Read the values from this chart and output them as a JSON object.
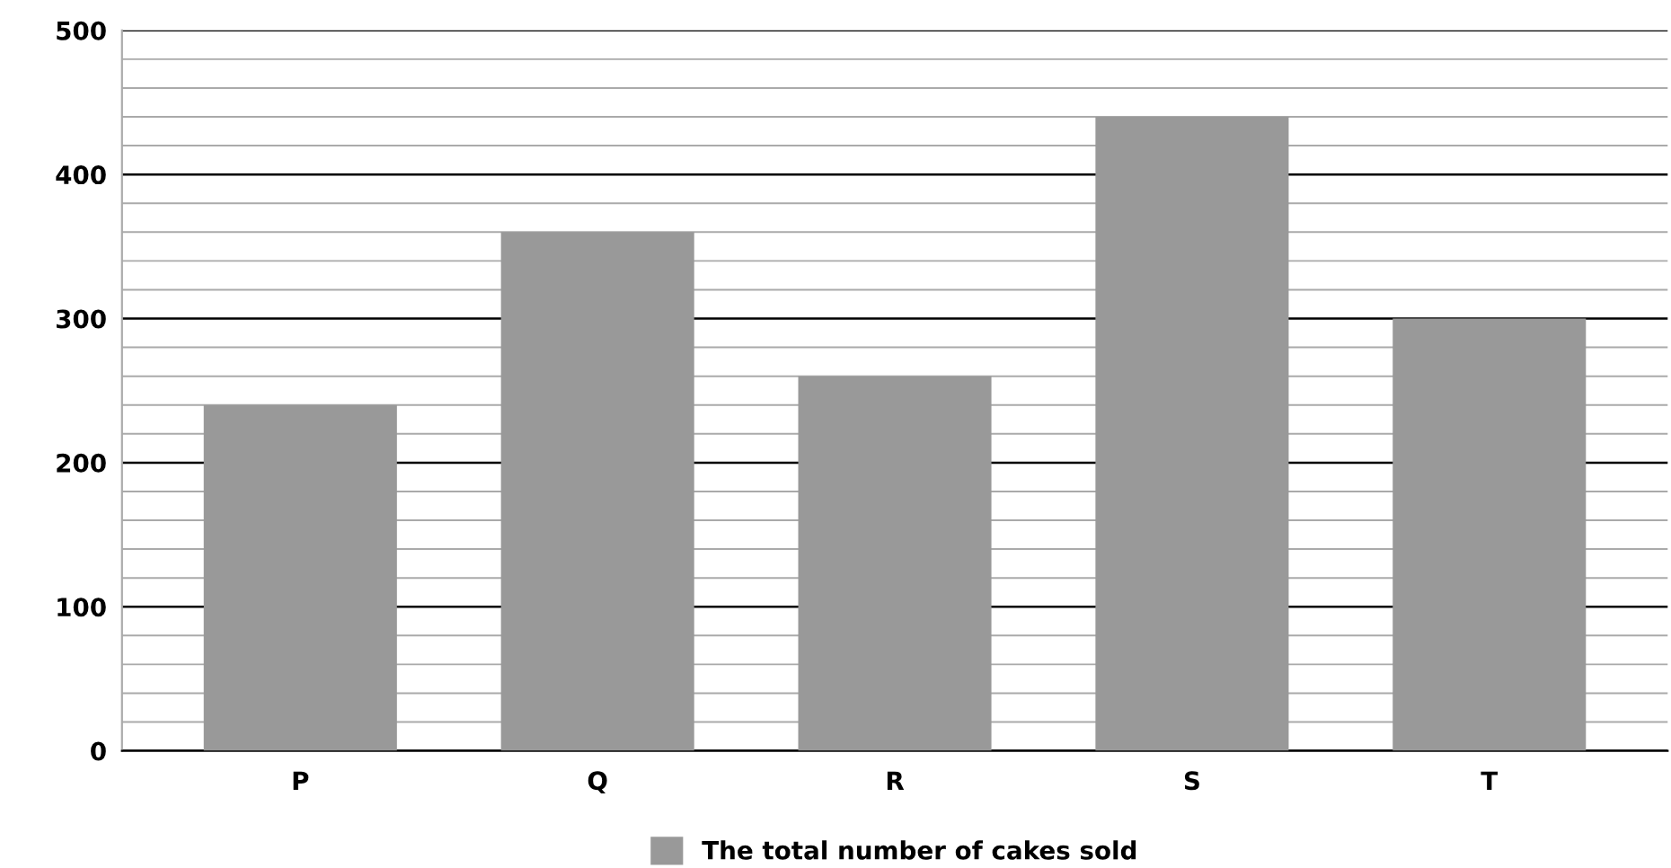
{
  "chart_data": {
    "type": "bar",
    "categories": [
      "P",
      "Q",
      "R",
      "S",
      "T"
    ],
    "series": [
      {
        "name": "The total number of cakes sold",
        "color": "#999999",
        "values": [
          240,
          360,
          260,
          440,
          300
        ]
      }
    ],
    "ylim": [
      0,
      500
    ],
    "yticks": [
      0,
      {
        "value": 20,
        "label": null
      },
      {
        "value": 40,
        "label": null
      },
      {
        "value": 60,
        "label": null
      },
      {
        "value": 80,
        "label": null
      },
      100,
      {
        "value": 120,
        "label": null
      },
      {
        "value": 140,
        "label": null
      },
      {
        "value": 160,
        "label": null
      },
      {
        "value": 180,
        "label": null
      },
      200,
      {
        "value": 220,
        "label": null
      },
      {
        "value": 240,
        "label": null
      },
      {
        "value": 260,
        "label": null
      },
      {
        "value": 280,
        "label": null
      },
      300,
      {
        "value": 320,
        "label": null
      },
      {
        "value": 340,
        "label": null
      },
      {
        "value": 360,
        "label": null
      },
      {
        "value": 380,
        "label": null
      },
      400,
      {
        "value": 420,
        "label": null
      },
      {
        "value": 440,
        "label": null
      },
      {
        "value": 460,
        "label": null
      },
      {
        "value": 480,
        "label": null
      },
      500
    ],
    "grid": "y",
    "legend": "bottom"
  }
}
